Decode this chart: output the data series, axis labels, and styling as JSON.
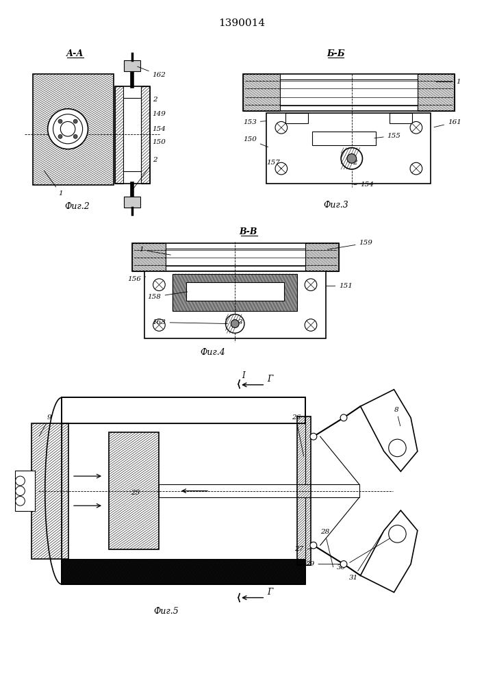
{
  "title": "1390014",
  "bg_color": "#ffffff",
  "fig2_label": "А-А",
  "fig2_caption": "Фиг.2",
  "fig3_label": "Б-Б",
  "fig3_caption": "Фиг.3",
  "fig4_label": "В-В",
  "fig4_caption": "Фиг.4",
  "fig5_caption": "Фиг.5"
}
